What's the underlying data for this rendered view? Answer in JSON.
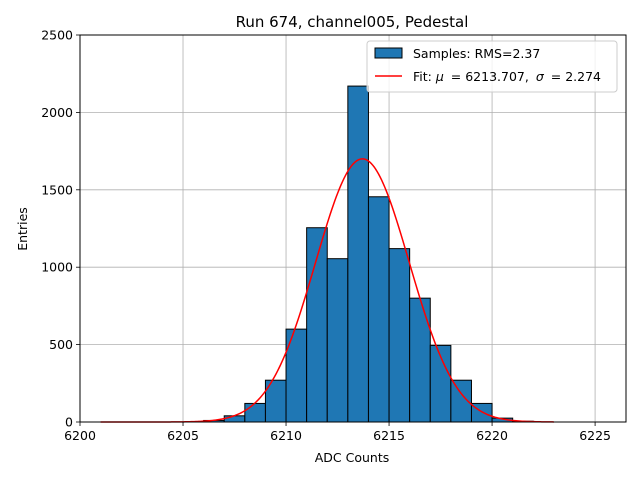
{
  "chart_data": {
    "type": "bar",
    "title": "Run 674, channel005, Pedestal",
    "xlabel": "ADC Counts",
    "ylabel": "Entries",
    "xlim": [
      6200,
      6226.5
    ],
    "ylim": [
      0,
      2500
    ],
    "xticks": [
      6200,
      6205,
      6210,
      6215,
      6220,
      6225
    ],
    "yticks": [
      0,
      500,
      1000,
      1500,
      2000,
      2500
    ],
    "grid": true,
    "legend_position": "top-right",
    "bin_width": 1,
    "histogram": {
      "name": "Samples: RMS=2.37",
      "color": "#1f77b4",
      "edge_color": "#000000",
      "bin_left_edges": [
        6206,
        6207,
        6208,
        6209,
        6210,
        6211,
        6212,
        6213,
        6214,
        6215,
        6216,
        6217,
        6218,
        6219,
        6220,
        6221
      ],
      "counts": [
        10,
        40,
        120,
        270,
        600,
        1255,
        1055,
        2170,
        1455,
        1120,
        800,
        495,
        270,
        120,
        25,
        5
      ]
    },
    "fit": {
      "label_prefix": "Fit: ",
      "mu_symbol": "μ",
      "mu_value": "= 6213.707,",
      "sigma_symbol": "σ",
      "sigma_value": "= 2.274",
      "color": "#ff0000",
      "mu": 6213.707,
      "sigma": 2.274,
      "amplitude": 1700,
      "x_range": [
        6201,
        6223
      ]
    }
  }
}
